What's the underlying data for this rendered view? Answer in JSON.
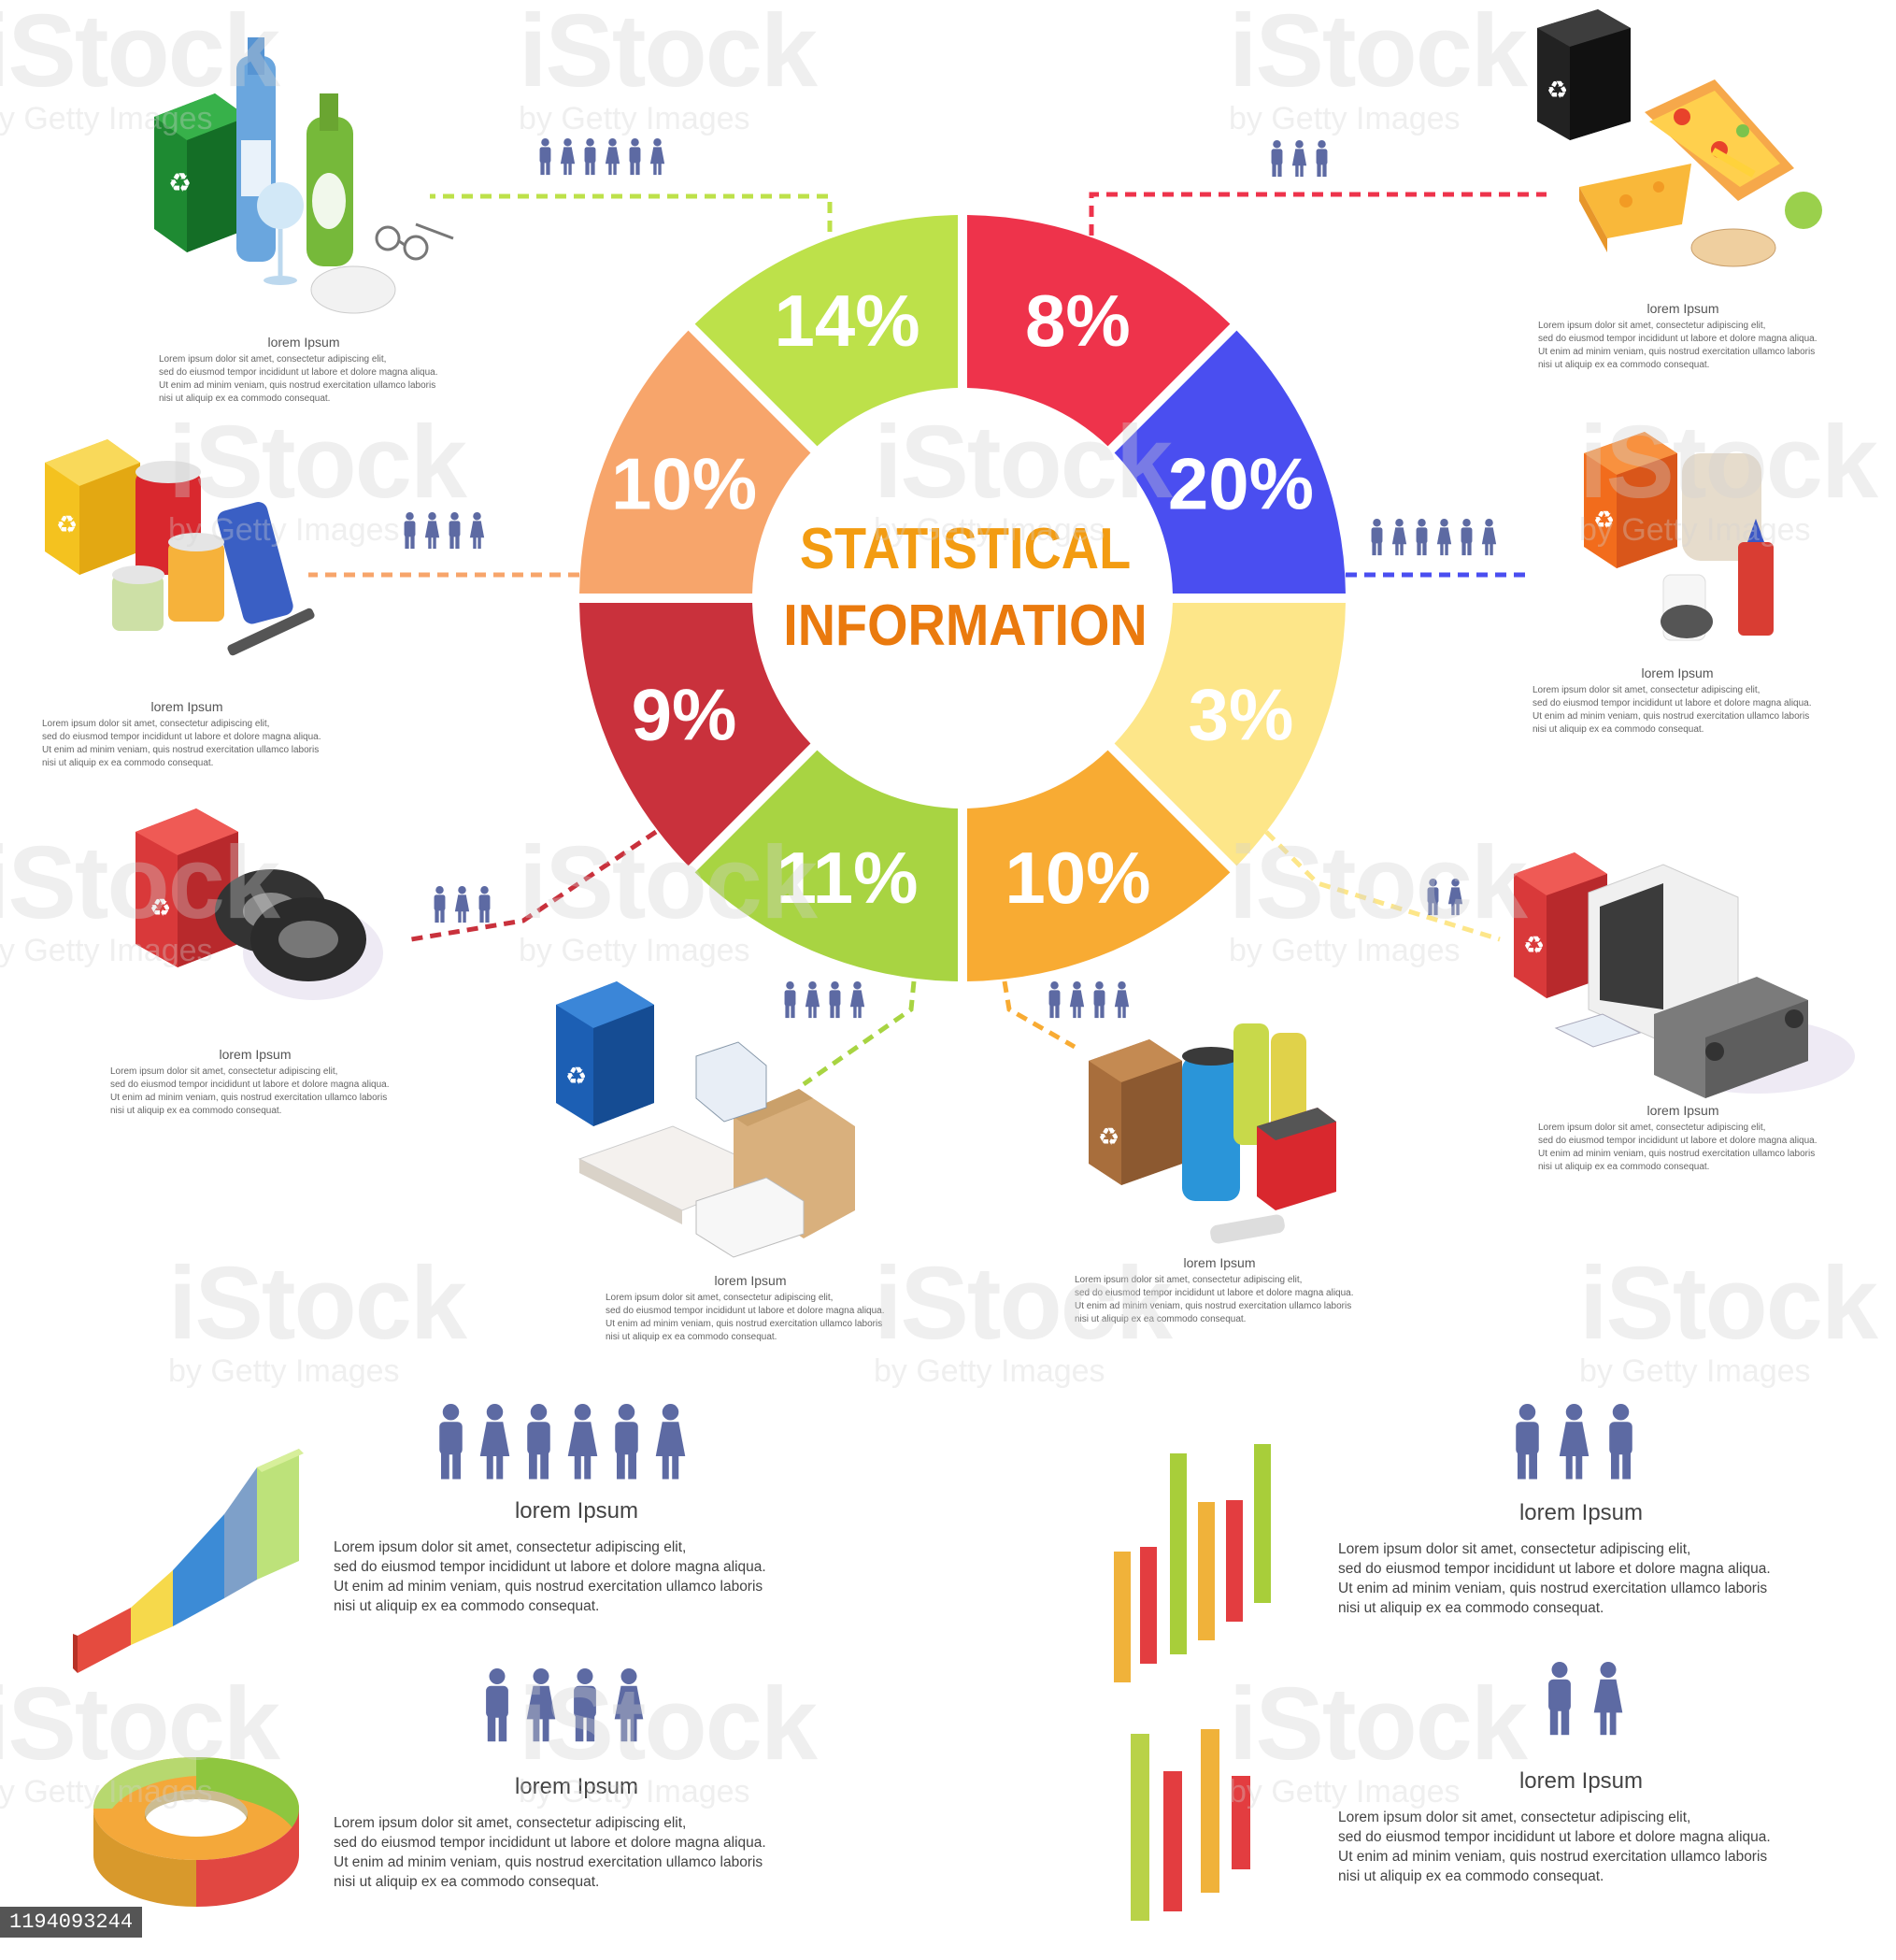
{
  "chart_data": [
    {
      "type": "pie",
      "title": "STATISTICAL INFORMATION",
      "segments": [
        {
          "label": "14%",
          "value": 14,
          "color": "#bde14a"
        },
        {
          "label": "8%",
          "value": 8,
          "color": "#ee334b"
        },
        {
          "label": "20%",
          "value": 20,
          "color": "#4a4ef0"
        },
        {
          "label": "3%",
          "value": 3,
          "color": "#fde689"
        },
        {
          "label": "10%",
          "value": 10,
          "color": "#f8ab33"
        },
        {
          "label": "11%",
          "value": 11,
          "color": "#a8d442"
        },
        {
          "label": "9%",
          "value": 9,
          "color": "#c9313c"
        },
        {
          "label": "10%",
          "value": 10,
          "color": "#f7a56b"
        }
      ]
    }
  ],
  "callouts": [
    {
      "title": "lorem Ipsum",
      "people": 6,
      "color": "#bde14a"
    },
    {
      "title": "lorem Ipsum",
      "people": 3,
      "color": "#ee334b"
    },
    {
      "title": "lorem Ipsum",
      "people": 6,
      "color": "#4a4ef0"
    },
    {
      "title": "lorem Ipsum",
      "people": 2,
      "color": "#fde689"
    },
    {
      "title": "lorem Ipsum",
      "people": 4,
      "color": "#f8ab33"
    },
    {
      "title": "lorem Ipsum",
      "people": 4,
      "color": "#a8d442"
    },
    {
      "title": "lorem Ipsum",
      "people": 3,
      "color": "#c9313c"
    },
    {
      "title": "lorem Ipsum",
      "people": 4,
      "color": "#f7a56b"
    }
  ],
  "small_text": [
    "Lorem ipsum dolor sit amet, consectetur adipiscing elit,",
    "sed do eiusmod tempor incididunt ut labore et dolore magna aliqua.",
    "Ut enim ad minim veniam, quis nostrud exercitation ullamco laboris",
    "nisi ut aliquip ex ea commodo consequat."
  ],
  "bottom_blocks": [
    {
      "title": "lorem Ipsum",
      "people": 6
    },
    {
      "title": "lorem Ipsum",
      "people": 3
    },
    {
      "title": "lorem Ipsum",
      "people": 4
    },
    {
      "title": "lorem Ipsum",
      "people": 2
    }
  ],
  "watermark": {
    "main": "iStock",
    "sub": "by Getty Images"
  },
  "stock_id": "1194093244",
  "colors": {
    "people": "#5d6aa3",
    "title_orange": "#f39c12"
  }
}
